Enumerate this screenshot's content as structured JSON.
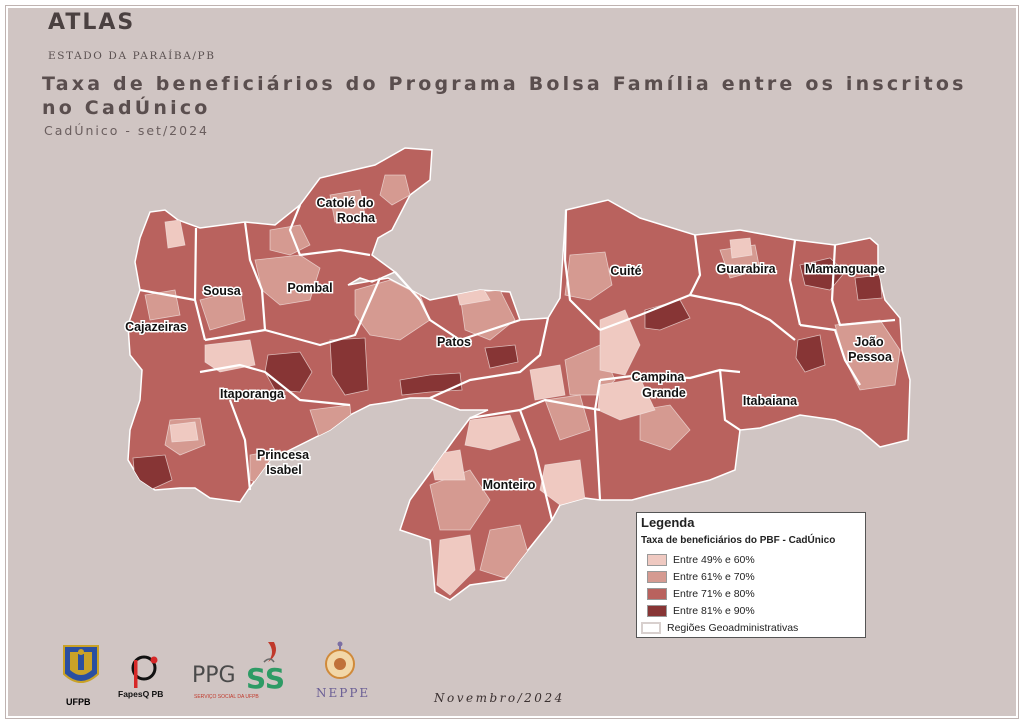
{
  "header": {
    "brand": "ATLAS",
    "brand_subtitle": "ESTADO DA PARAÍBA/PB",
    "title": "Taxa de beneficiários do Programa Bolsa Família entre os inscritos no CadÚnico",
    "subtitle": "CadÚnico - set/2024"
  },
  "colors": {
    "background": "#d0c5c3",
    "class_49_60": "#efc9c1",
    "class_61_70": "#d59a91",
    "class_71_80": "#b9625e",
    "class_81_90": "#873535",
    "region_border": "#ffffff"
  },
  "map": {
    "region_labels": [
      "Catolé do Rocha",
      "Sousa",
      "Pombal",
      "Cajazeiras",
      "Patos",
      "Itaporanga",
      "Princesa Isabel",
      "Cuité",
      "Guarabira",
      "Mamanguape",
      "João Pessoa",
      "Campina Grande",
      "Itabaiana",
      "Monteiro"
    ],
    "labels": {
      "catole_do_rocha": [
        "Catolé do",
        "Rocha"
      ],
      "sousa": "Sousa",
      "pombal": "Pombal",
      "cajazeiras": "Cajazeiras",
      "patos": "Patos",
      "itaporanga": "Itaporanga",
      "princesa_isabel": [
        "Princesa",
        "Isabel"
      ],
      "cuite": "Cuité",
      "guarabira": "Guarabira",
      "mamanguape": "Mamanguape",
      "joao_pessoa": [
        "João",
        "Pessoa"
      ],
      "campina_grande": [
        "Campina",
        "Grande"
      ],
      "itabaiana": "Itabaiana",
      "monteiro": "Monteiro"
    }
  },
  "legend": {
    "title": "Legenda",
    "subtitle": "Taxa de beneficiários do PBF - CadÚnico",
    "items": [
      {
        "label": "Entre 49% e 60%",
        "color": "#efc9c1"
      },
      {
        "label": "Entre 61% e 70%",
        "color": "#d59a91"
      },
      {
        "label": "Entre 71% e 80%",
        "color": "#b9625e"
      },
      {
        "label": "Entre 81% e 90%",
        "color": "#873535"
      }
    ],
    "outline_label": "Regiões Geoadministrativas"
  },
  "footer": {
    "date": "Novembro/2024",
    "logos": {
      "ufpb": "UFPB",
      "fapesq": "FapesQ PB",
      "ppgss": "PPGSS",
      "ppgss_small": "SERVIÇO SOCIAL DA UFPB",
      "neppe": "NEPPE"
    }
  }
}
